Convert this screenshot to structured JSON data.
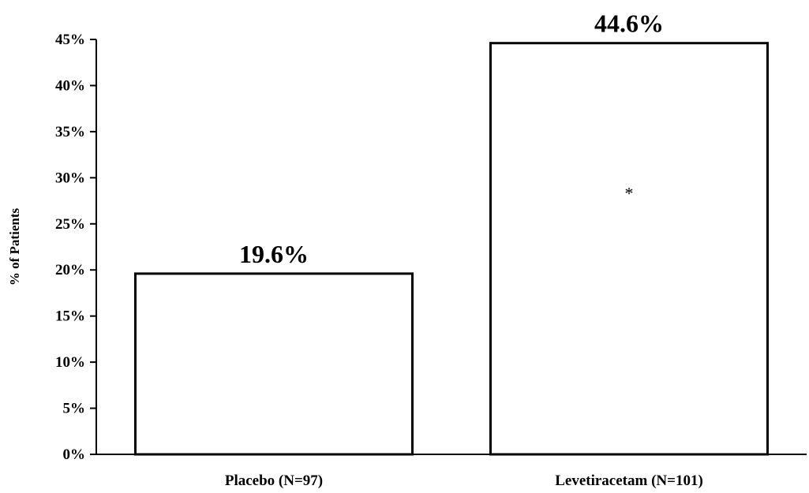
{
  "chart_data": {
    "type": "bar",
    "categories": [
      "Placebo (N=97)",
      "Levetiracetam (N=101)"
    ],
    "values": [
      19.6,
      44.6
    ],
    "data_labels": [
      "19.6%",
      "44.6%"
    ],
    "title": "",
    "xlabel": "",
    "ylabel": "% of Patients",
    "ylim": [
      0,
      45
    ],
    "yticks": [
      0,
      5,
      10,
      15,
      20,
      25,
      30,
      35,
      40,
      45
    ],
    "ytick_labels": [
      "0%",
      "5%",
      "10%",
      "15%",
      "20%",
      "25%",
      "30%",
      "35%",
      "40%",
      "45%"
    ],
    "annotations": [
      {
        "text": "*",
        "category": "Levetiracetam (N=101)",
        "value": 28.7
      }
    ],
    "grid": false,
    "legend": "none",
    "colors": {
      "bar_fill": "#ffffff",
      "bar_stroke": "#000000",
      "axis": "#000000"
    }
  }
}
